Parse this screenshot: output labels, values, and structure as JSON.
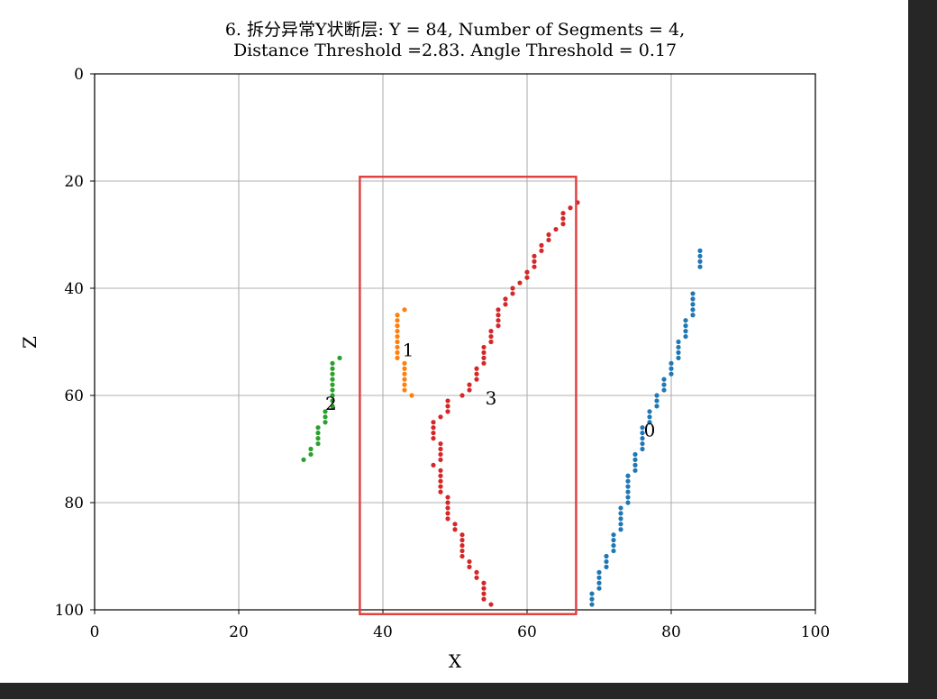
{
  "chart_data": {
    "type": "scatter",
    "title_line1": "6. 拆分异常Y状断层: Y = 84, Number of Segments = 4,",
    "title_line2": "Distance Threshold =2.83. Angle Threshold = 0.17",
    "xlabel": "X",
    "ylabel": "Z",
    "xlim": [
      0,
      100
    ],
    "ylim": [
      0,
      100
    ],
    "y_inverted": true,
    "grid": true,
    "xticks": [
      0,
      20,
      40,
      60,
      80,
      100
    ],
    "yticks": [
      0,
      20,
      40,
      60,
      80,
      100
    ],
    "highlight_box": {
      "x0": 36.8,
      "x1": 66.8,
      "z0": 19.2,
      "z1": 100.8,
      "color": "#e03c3c"
    },
    "series": [
      {
        "label": "0",
        "color": "#1f77b4",
        "label_pos": [
          77,
          66.5
        ],
        "points": [
          [
            84,
            33
          ],
          [
            84,
            34
          ],
          [
            84,
            35
          ],
          [
            84,
            36
          ],
          [
            83,
            41
          ],
          [
            83,
            42
          ],
          [
            83,
            43
          ],
          [
            83,
            44
          ],
          [
            83,
            45
          ],
          [
            82,
            46
          ],
          [
            82,
            47
          ],
          [
            82,
            48
          ],
          [
            82,
            49
          ],
          [
            81,
            50
          ],
          [
            81,
            51
          ],
          [
            81,
            52
          ],
          [
            81,
            53
          ],
          [
            80,
            54
          ],
          [
            80,
            55
          ],
          [
            80,
            56
          ],
          [
            79,
            57
          ],
          [
            79,
            58
          ],
          [
            79,
            59
          ],
          [
            78,
            60
          ],
          [
            78,
            61
          ],
          [
            78,
            62
          ],
          [
            77,
            63
          ],
          [
            77,
            64
          ],
          [
            77,
            65
          ],
          [
            76,
            66
          ],
          [
            76,
            67
          ],
          [
            76,
            68
          ],
          [
            76,
            69
          ],
          [
            76,
            70
          ],
          [
            75,
            71
          ],
          [
            75,
            72
          ],
          [
            75,
            73
          ],
          [
            75,
            74
          ],
          [
            74,
            75
          ],
          [
            74,
            76
          ],
          [
            74,
            77
          ],
          [
            74,
            78
          ],
          [
            74,
            79
          ],
          [
            74,
            80
          ],
          [
            73,
            81
          ],
          [
            73,
            82
          ],
          [
            73,
            83
          ],
          [
            73,
            84
          ],
          [
            73,
            85
          ],
          [
            72,
            86
          ],
          [
            72,
            87
          ],
          [
            72,
            88
          ],
          [
            72,
            89
          ],
          [
            71,
            90
          ],
          [
            71,
            91
          ],
          [
            71,
            92
          ],
          [
            70,
            93
          ],
          [
            70,
            94
          ],
          [
            70,
            95
          ],
          [
            70,
            96
          ],
          [
            69,
            97
          ],
          [
            69,
            98
          ],
          [
            69,
            99
          ]
        ]
      },
      {
        "label": "1",
        "color": "#ff7f0e",
        "label_pos": [
          43.5,
          51.5
        ],
        "points": [
          [
            43,
            44
          ],
          [
            42,
            45
          ],
          [
            42,
            46
          ],
          [
            42,
            47
          ],
          [
            42,
            48
          ],
          [
            42,
            49
          ],
          [
            42,
            50
          ],
          [
            42,
            51
          ],
          [
            42,
            52
          ],
          [
            42,
            53
          ],
          [
            43,
            54
          ],
          [
            43,
            55
          ],
          [
            43,
            56
          ],
          [
            43,
            57
          ],
          [
            43,
            58
          ],
          [
            43,
            59
          ],
          [
            44,
            60
          ]
        ]
      },
      {
        "label": "2",
        "color": "#2ca02c",
        "label_pos": [
          32.8,
          61.5
        ],
        "points": [
          [
            34,
            53
          ],
          [
            33,
            54
          ],
          [
            33,
            55
          ],
          [
            33,
            56
          ],
          [
            33,
            57
          ],
          [
            33,
            58
          ],
          [
            33,
            59
          ],
          [
            33,
            60
          ],
          [
            33,
            61
          ],
          [
            33,
            62
          ],
          [
            32,
            63
          ],
          [
            32,
            64
          ],
          [
            32,
            65
          ],
          [
            31,
            66
          ],
          [
            31,
            67
          ],
          [
            31,
            68
          ],
          [
            31,
            69
          ],
          [
            30,
            70
          ],
          [
            30,
            71
          ],
          [
            29,
            72
          ]
        ]
      },
      {
        "label": "3",
        "color": "#d62728",
        "label_pos": [
          55,
          60.5
        ],
        "points": [
          [
            67,
            24
          ],
          [
            66,
            25
          ],
          [
            65,
            26
          ],
          [
            65,
            27
          ],
          [
            65,
            28
          ],
          [
            64,
            29
          ],
          [
            63,
            30
          ],
          [
            63,
            31
          ],
          [
            62,
            32
          ],
          [
            62,
            33
          ],
          [
            61,
            34
          ],
          [
            61,
            35
          ],
          [
            61,
            36
          ],
          [
            60,
            37
          ],
          [
            60,
            38
          ],
          [
            59,
            39
          ],
          [
            58,
            40
          ],
          [
            58,
            41
          ],
          [
            57,
            42
          ],
          [
            57,
            43
          ],
          [
            56,
            44
          ],
          [
            56,
            45
          ],
          [
            56,
            46
          ],
          [
            56,
            47
          ],
          [
            55,
            48
          ],
          [
            55,
            49
          ],
          [
            55,
            50
          ],
          [
            54,
            51
          ],
          [
            54,
            52
          ],
          [
            54,
            53
          ],
          [
            54,
            54
          ],
          [
            53,
            55
          ],
          [
            53,
            56
          ],
          [
            53,
            57
          ],
          [
            52,
            58
          ],
          [
            52,
            59
          ],
          [
            51,
            60
          ],
          [
            49,
            61
          ],
          [
            49,
            62
          ],
          [
            49,
            63
          ],
          [
            48,
            64
          ],
          [
            47,
            65
          ],
          [
            47,
            66
          ],
          [
            47,
            67
          ],
          [
            47,
            68
          ],
          [
            48,
            69
          ],
          [
            48,
            70
          ],
          [
            48,
            71
          ],
          [
            48,
            72
          ],
          [
            47,
            73
          ],
          [
            48,
            74
          ],
          [
            48,
            75
          ],
          [
            48,
            76
          ],
          [
            48,
            77
          ],
          [
            48,
            78
          ],
          [
            49,
            79
          ],
          [
            49,
            80
          ],
          [
            49,
            81
          ],
          [
            49,
            82
          ],
          [
            49,
            83
          ],
          [
            50,
            84
          ],
          [
            50,
            85
          ],
          [
            51,
            86
          ],
          [
            51,
            87
          ],
          [
            51,
            88
          ],
          [
            51,
            89
          ],
          [
            51,
            90
          ],
          [
            52,
            91
          ],
          [
            52,
            92
          ],
          [
            53,
            93
          ],
          [
            53,
            94
          ],
          [
            54,
            95
          ],
          [
            54,
            96
          ],
          [
            54,
            97
          ],
          [
            54,
            98
          ],
          [
            55,
            99
          ]
        ]
      }
    ]
  }
}
